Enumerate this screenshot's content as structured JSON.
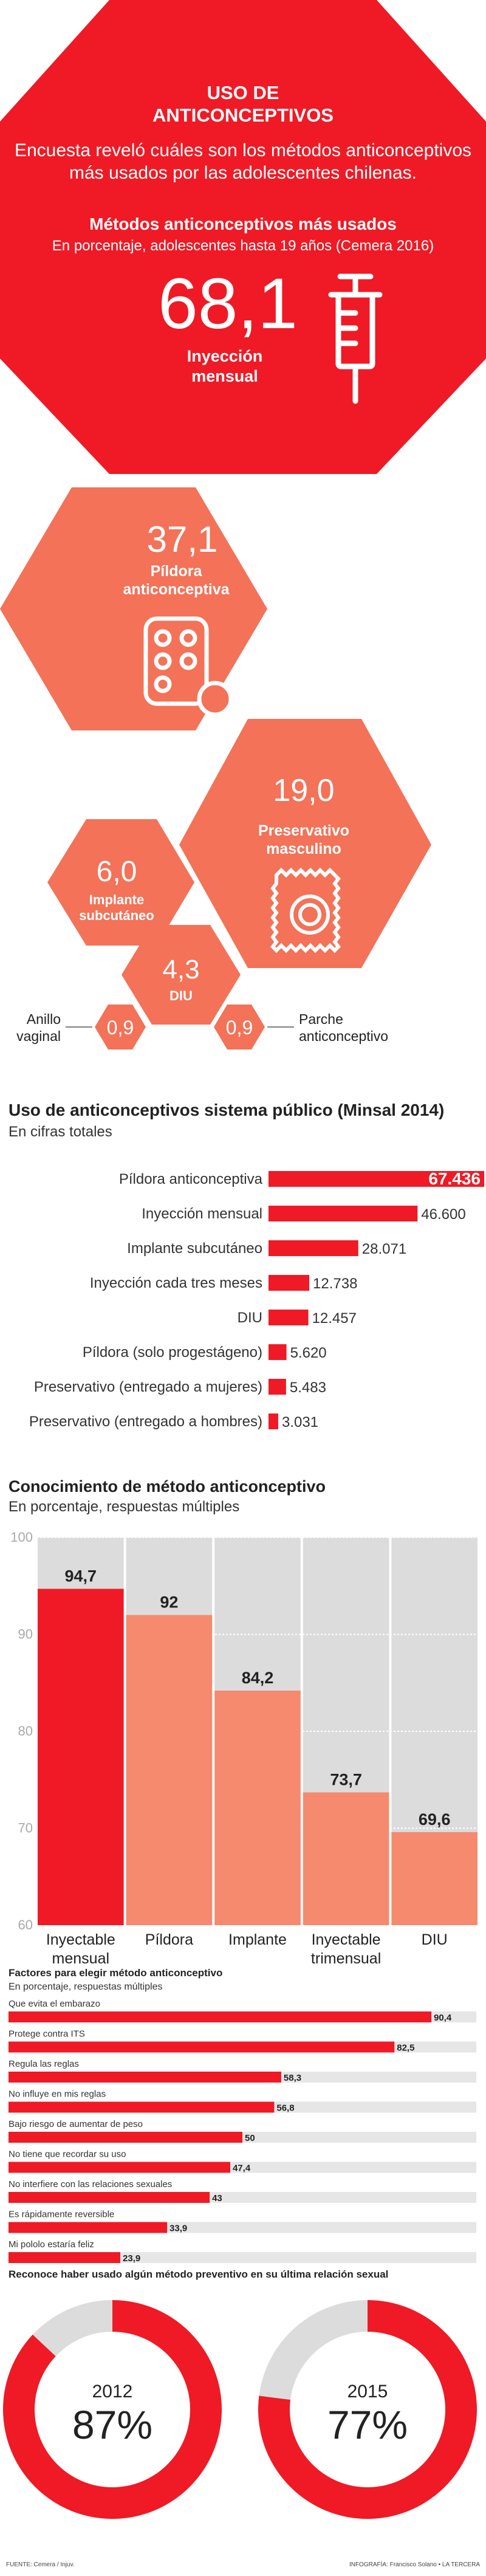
{
  "header": {
    "title_line1": "USO DE",
    "title_line2": "ANTICONCEPTIVOS",
    "intro_line1": "Encuesta reveló cuáles son los métodos anticonceptivos",
    "intro_line2": "más usados por las adolescentes chilenas.",
    "sub_title": "Métodos anticonceptivos más usados",
    "sub_note": "En porcentaje, adolescentes hasta 19 años  (Cemera 2016)"
  },
  "colors": {
    "red": "#ef1a25",
    "salmon": "#f37258",
    "light_salmon": "#f58a6f",
    "gray": "#dcdcdc",
    "dark_red": "#d7141d"
  },
  "methods": [
    {
      "value": "68,1",
      "label_line1": "Inyección",
      "label_line2": "mensual",
      "icon": "syringe-icon"
    },
    {
      "value": "37,1",
      "label_line1": "Píldora",
      "label_line2": "anticonceptiva",
      "icon": "pill-pack-icon"
    },
    {
      "value": "19,0",
      "label_line1": "Preservativo",
      "label_line2": "masculino",
      "icon": "condom-icon"
    },
    {
      "value": "6,0",
      "label_line1": "Implante",
      "label_line2": "subcutáneo"
    },
    {
      "value": "4,3",
      "label_line1": "DIU",
      "label_line2": ""
    },
    {
      "value": "0,9",
      "label_line1": "Anillo",
      "label_line2": "vaginal"
    },
    {
      "value": "0,9",
      "label_line1": "Parche",
      "label_line2": "anticonceptivo"
    }
  ],
  "chart_data": [
    {
      "type": "bar",
      "orientation": "horizontal",
      "title": "Uso de anticonceptivos sistema público (Minsal 2014)",
      "subtitle": "En cifras totales",
      "categories": [
        "Píldora anticonceptiva",
        "Inyección mensual",
        "Implante subcutáneo",
        "Inyección cada tres meses",
        "DIU",
        "Píldora (solo progestágeno)",
        "Preservativo (entregado a mujeres)",
        "Preservativo (entregado a hombres)"
      ],
      "values": [
        67436,
        46600,
        28071,
        12738,
        12457,
        5620,
        5483,
        3031
      ],
      "value_labels": [
        "67.436",
        "46.600",
        "28.071",
        "12.738",
        "12.457",
        "5.620",
        "5.483",
        "3.031"
      ]
    },
    {
      "type": "bar",
      "orientation": "vertical",
      "title": "Conocimiento de método anticonceptivo",
      "subtitle": "En porcentaje, respuestas múltiples",
      "categories": [
        {
          "line1": "Inyectable",
          "line2": "mensual"
        },
        {
          "line1": "Píldora",
          "line2": ""
        },
        {
          "line1": "Implante",
          "line2": ""
        },
        {
          "line1": "Inyectable",
          "line2": "trimensual"
        },
        {
          "line1": "DIU",
          "line2": ""
        }
      ],
      "values": [
        94.7,
        92,
        84.2,
        73.7,
        69.6
      ],
      "value_labels": [
        "94,7",
        "92",
        "84,2",
        "73,7",
        "69,6"
      ],
      "ylim": [
        60,
        100
      ],
      "yticks": [
        "100",
        "90",
        "80",
        "70",
        "60"
      ]
    },
    {
      "type": "bar",
      "orientation": "horizontal",
      "title": "Factores para elegir método anticonceptivo",
      "subtitle": "En porcentaje, respuestas múltiples",
      "categories": [
        "Que evita el embarazo",
        "Protege contra ITS",
        "Regula las reglas",
        "No influye en mis reglas",
        "Bajo riesgo de aumentar de peso",
        "No tiene que recordar su uso",
        "No interfiere con las relaciones sexuales",
        "Es rápidamente reversible",
        "Mi pololo estaría feliz"
      ],
      "values": [
        90.4,
        82.5,
        58.3,
        56.8,
        50,
        47.4,
        43,
        33.9,
        23.9
      ],
      "value_labels": [
        "90,4",
        "82,5",
        "58,3",
        "56,8",
        "50",
        "47,4",
        "43",
        "33,9",
        "23,9"
      ],
      "xlim": [
        0,
        100
      ]
    },
    {
      "type": "pie",
      "title": "Reconoce haber usado algún método preventivo en su última relación sexual",
      "series": [
        {
          "name": "2012",
          "value": 87,
          "label": "87%"
        },
        {
          "name": "2015",
          "value": 77,
          "label": "77%"
        }
      ]
    }
  ],
  "footer": {
    "source": "FUENTE: Cemera / Injuv.",
    "credit": "INFOGRAFÍA: Francisco Solano • LA TERCERA"
  }
}
